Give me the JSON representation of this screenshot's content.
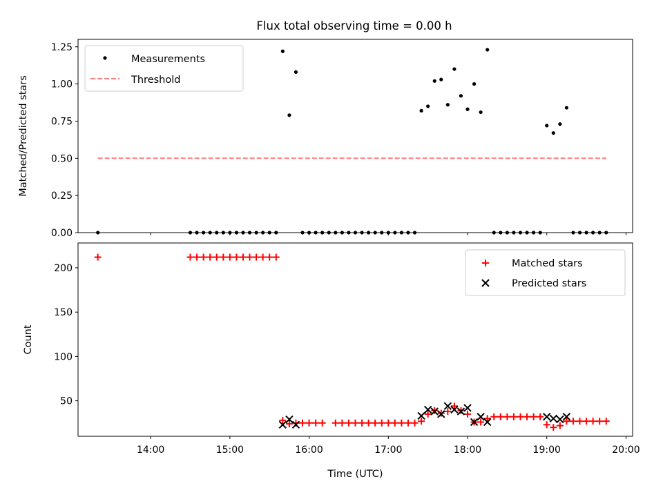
{
  "title": "Flux total observing time = 0.00 h",
  "chart_data": [
    {
      "type": "scatter",
      "panel": "top",
      "title": "Flux total observing time = 0.00 h",
      "ylabel": "Matched/Predicted stars",
      "xlabel": "",
      "ylim": [
        0,
        1.3
      ],
      "yticks": [
        "0.00",
        "0.25",
        "0.50",
        "0.75",
        "1.00",
        "1.25"
      ],
      "legend": {
        "placement": "top-left",
        "entries": [
          "Measurements",
          "Threshold"
        ]
      },
      "series": [
        {
          "name": "Measurements",
          "color": "#000000",
          "marker": "dot",
          "points": [
            [
              "13:20",
              0
            ],
            [
              "14:30",
              0
            ],
            [
              "14:35",
              0
            ],
            [
              "14:40",
              0
            ],
            [
              "14:45",
              0
            ],
            [
              "14:50",
              0
            ],
            [
              "14:55",
              0
            ],
            [
              "15:00",
              0
            ],
            [
              "15:05",
              0
            ],
            [
              "15:10",
              0
            ],
            [
              "15:15",
              0
            ],
            [
              "15:20",
              0
            ],
            [
              "15:25",
              0
            ],
            [
              "15:30",
              0
            ],
            [
              "15:35",
              0
            ],
            [
              "15:40",
              1.22
            ],
            [
              "15:45",
              0.79
            ],
            [
              "15:50",
              1.08
            ],
            [
              "15:55",
              0
            ],
            [
              "16:00",
              0
            ],
            [
              "16:05",
              0
            ],
            [
              "16:10",
              0
            ],
            [
              "16:15",
              0
            ],
            [
              "16:20",
              0
            ],
            [
              "16:25",
              0
            ],
            [
              "16:30",
              0
            ],
            [
              "16:35",
              0
            ],
            [
              "16:40",
              0
            ],
            [
              "16:45",
              0
            ],
            [
              "16:50",
              0
            ],
            [
              "16:55",
              0
            ],
            [
              "17:00",
              0
            ],
            [
              "17:05",
              0
            ],
            [
              "17:10",
              0
            ],
            [
              "17:15",
              0
            ],
            [
              "17:20",
              0
            ],
            [
              "17:25",
              0.82
            ],
            [
              "17:30",
              0.85
            ],
            [
              "17:35",
              1.02
            ],
            [
              "17:40",
              1.03
            ],
            [
              "17:45",
              0.86
            ],
            [
              "17:50",
              1.1
            ],
            [
              "17:55",
              0.92
            ],
            [
              "18:00",
              0.83
            ],
            [
              "18:05",
              1.0
            ],
            [
              "18:10",
              0.81
            ],
            [
              "18:15",
              1.23
            ],
            [
              "18:20",
              0
            ],
            [
              "18:25",
              0
            ],
            [
              "18:30",
              0
            ],
            [
              "18:35",
              0
            ],
            [
              "18:40",
              0
            ],
            [
              "18:45",
              0
            ],
            [
              "18:50",
              0
            ],
            [
              "18:55",
              0
            ],
            [
              "19:00",
              0.72
            ],
            [
              "19:05",
              0.67
            ],
            [
              "19:10",
              0.73
            ],
            [
              "19:15",
              0.84
            ],
            [
              "19:20",
              0
            ],
            [
              "19:25",
              0
            ],
            [
              "19:30",
              0
            ],
            [
              "19:35",
              0
            ],
            [
              "19:40",
              0
            ],
            [
              "19:45",
              0
            ]
          ]
        },
        {
          "name": "Threshold",
          "color": "#ff7f7f",
          "style": "dashed",
          "points": [
            [
              "13:20",
              0.5
            ],
            [
              "19:45",
              0.5
            ]
          ]
        }
      ]
    },
    {
      "type": "scatter",
      "panel": "bottom",
      "xlabel": "Time (UTC)",
      "ylabel": "Count",
      "ylim": [
        10,
        228
      ],
      "yticks": [
        "50",
        "100",
        "150",
        "200"
      ],
      "xlim": [
        "13:05",
        "20:05"
      ],
      "xticks": [
        "14:00",
        "15:00",
        "16:00",
        "17:00",
        "18:00",
        "19:00",
        "20:00"
      ],
      "legend": {
        "placement": "top-right",
        "entries": [
          "Matched stars",
          "Predicted stars"
        ]
      },
      "series": [
        {
          "name": "Matched stars",
          "color": "#ff0000",
          "marker": "plus",
          "points": [
            [
              "13:20",
              212
            ],
            [
              "14:30",
              212
            ],
            [
              "14:35",
              212
            ],
            [
              "14:40",
              212
            ],
            [
              "14:45",
              212
            ],
            [
              "14:50",
              212
            ],
            [
              "14:55",
              212
            ],
            [
              "15:00",
              212
            ],
            [
              "15:05",
              212
            ],
            [
              "15:10",
              212
            ],
            [
              "15:15",
              212
            ],
            [
              "15:20",
              212
            ],
            [
              "15:25",
              212
            ],
            [
              "15:30",
              212
            ],
            [
              "15:35",
              212
            ],
            [
              "15:40",
              28
            ],
            [
              "15:45",
              24
            ],
            [
              "15:50",
              25
            ],
            [
              "15:55",
              25
            ],
            [
              "16:00",
              25
            ],
            [
              "16:05",
              25
            ],
            [
              "16:10",
              25
            ],
            [
              "16:20",
              25
            ],
            [
              "16:25",
              25
            ],
            [
              "16:30",
              25
            ],
            [
              "16:35",
              25
            ],
            [
              "16:40",
              25
            ],
            [
              "16:45",
              25
            ],
            [
              "16:50",
              25
            ],
            [
              "16:55",
              25
            ],
            [
              "17:00",
              25
            ],
            [
              "17:05",
              25
            ],
            [
              "17:10",
              25
            ],
            [
              "17:15",
              25
            ],
            [
              "17:20",
              25
            ],
            [
              "17:25",
              27
            ],
            [
              "17:30",
              35
            ],
            [
              "17:35",
              39
            ],
            [
              "17:40",
              36
            ],
            [
              "17:45",
              38
            ],
            [
              "17:50",
              44
            ],
            [
              "17:55",
              39
            ],
            [
              "18:00",
              35
            ],
            [
              "18:05",
              26
            ],
            [
              "18:10",
              26
            ],
            [
              "18:15",
              30
            ],
            [
              "18:20",
              32
            ],
            [
              "18:25",
              32
            ],
            [
              "18:30",
              32
            ],
            [
              "18:35",
              32
            ],
            [
              "18:40",
              32
            ],
            [
              "18:45",
              32
            ],
            [
              "18:50",
              32
            ],
            [
              "18:55",
              32
            ],
            [
              "19:00",
              23
            ],
            [
              "19:05",
              20
            ],
            [
              "19:10",
              22
            ],
            [
              "19:15",
              27
            ],
            [
              "19:20",
              27
            ],
            [
              "19:25",
              27
            ],
            [
              "19:30",
              27
            ],
            [
              "19:35",
              27
            ],
            [
              "19:40",
              27
            ],
            [
              "19:45",
              27
            ]
          ]
        },
        {
          "name": "Predicted stars",
          "color": "#000000",
          "marker": "x",
          "points": [
            [
              "15:40",
              23
            ],
            [
              "15:45",
              29
            ],
            [
              "15:50",
              23
            ],
            [
              "17:25",
              33
            ],
            [
              "17:30",
              40
            ],
            [
              "17:35",
              38
            ],
            [
              "17:40",
              35
            ],
            [
              "17:45",
              44
            ],
            [
              "17:50",
              40
            ],
            [
              "17:55",
              38
            ],
            [
              "18:00",
              42
            ],
            [
              "18:05",
              26
            ],
            [
              "18:10",
              32
            ],
            [
              "18:15",
              26
            ],
            [
              "19:00",
              32
            ],
            [
              "19:05",
              30
            ],
            [
              "19:10",
              29
            ],
            [
              "19:15",
              32
            ]
          ]
        }
      ]
    }
  ]
}
